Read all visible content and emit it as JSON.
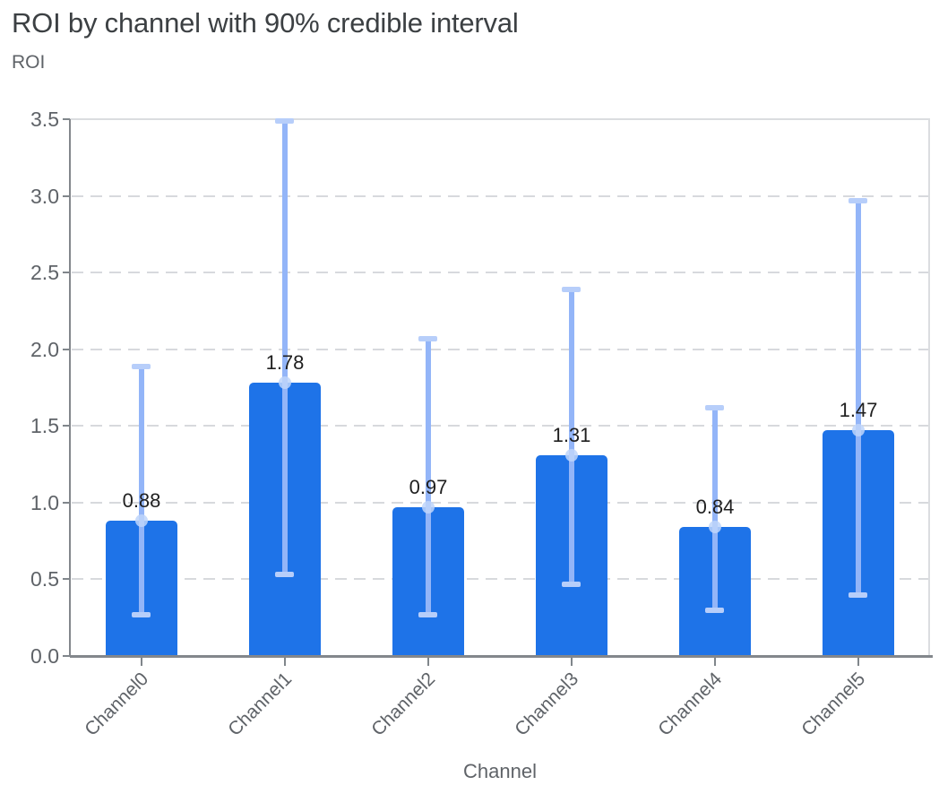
{
  "chart_data": {
    "type": "bar",
    "title": "ROI by channel with 90% credible interval",
    "ylabel": "ROI",
    "xlabel": "Channel",
    "categories": [
      "Channel0",
      "Channel1",
      "Channel2",
      "Channel3",
      "Channel4",
      "Channel5"
    ],
    "values": [
      0.88,
      1.78,
      0.97,
      1.31,
      0.84,
      1.47
    ],
    "value_labels": [
      "0.88",
      "1.78",
      "0.97",
      "1.31",
      "0.84",
      "1.47"
    ],
    "ci_low": [
      0.27,
      0.53,
      0.27,
      0.47,
      0.3,
      0.4
    ],
    "ci_high": [
      1.89,
      3.49,
      2.07,
      2.39,
      1.62,
      2.97
    ],
    "ylim": [
      0,
      3.5
    ],
    "ytick_labels": [
      "0.0",
      "0.5",
      "1.0",
      "1.5",
      "2.0",
      "2.5",
      "3.0",
      "3.5"
    ],
    "grid": "horizontal-dashed",
    "legend": "none",
    "colors": {
      "bar": "#1e73e8",
      "error_line": "#93b5f8",
      "error_cap": "#b7cefa",
      "error_dot": "#bed5fa",
      "gridline": "#d7d9dd",
      "axis": "#83878c",
      "plot_border": "#dbdde0",
      "title_text": "#3c4043",
      "axis_text": "#5f6368",
      "value_text": "#1f1f1f"
    }
  }
}
